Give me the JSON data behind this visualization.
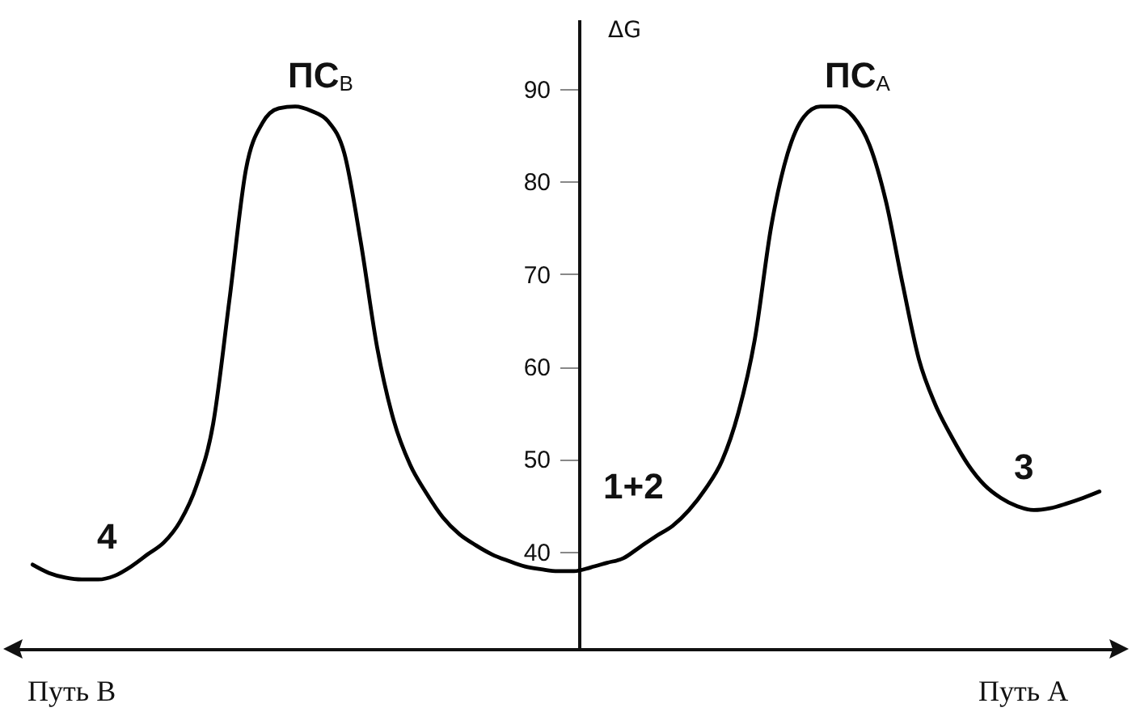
{
  "chart_data": {
    "type": "line",
    "ylabel": "ΔG",
    "color": "#000000",
    "marker": "none",
    "tick_labels": "y",
    "categories": [
      null,
      null,
      null,
      null,
      null,
      null,
      null,
      null,
      null,
      null,
      null,
      null,
      null,
      null,
      null,
      null,
      null,
      null,
      null,
      null,
      null,
      null,
      null,
      null,
      null,
      null,
      null,
      null,
      null,
      null,
      null,
      null,
      null,
      null,
      null,
      null,
      null,
      null,
      null,
      null,
      null,
      null,
      null,
      null,
      null,
      null,
      null,
      null,
      null,
      null,
      null,
      null,
      null,
      null,
      null,
      null,
      null,
      null,
      null,
      null,
      null,
      null,
      null,
      null,
      null,
      null
    ],
    "values": [
      38.6,
      37.7,
      37.2,
      37.0,
      37.0,
      37.4,
      38.4,
      39.7,
      41.0,
      43.3,
      47.2,
      53.8,
      67.3,
      81.3,
      86.3,
      87.9,
      88.1,
      87.6,
      86.5,
      83.0,
      73.4,
      62.0,
      54.2,
      49.4,
      46.3,
      43.7,
      41.9,
      40.7,
      39.7,
      39.0,
      38.4,
      38.1,
      37.9,
      37.9,
      38.3,
      38.8,
      39.3,
      40.5,
      41.7,
      42.8,
      44.5,
      46.8,
      49.8,
      55.0,
      62.9,
      75.1,
      83.0,
      87.0,
      88.1,
      88.1,
      87.0,
      83.9,
      77.8,
      69.0,
      60.8,
      55.9,
      52.4,
      49.4,
      47.2,
      45.8,
      44.9,
      44.5,
      44.7,
      45.2,
      45.8,
      46.5
    ],
    "ylim": [
      29.5,
      97.5
    ],
    "yticks": [
      40,
      50,
      60,
      70,
      80,
      90
    ],
    "annotations": [
      "ПС$_{В}$",
      "ПС$_{А}$",
      "4",
      "1+2",
      "3",
      "Путь В",
      "Путь А"
    ]
  }
}
